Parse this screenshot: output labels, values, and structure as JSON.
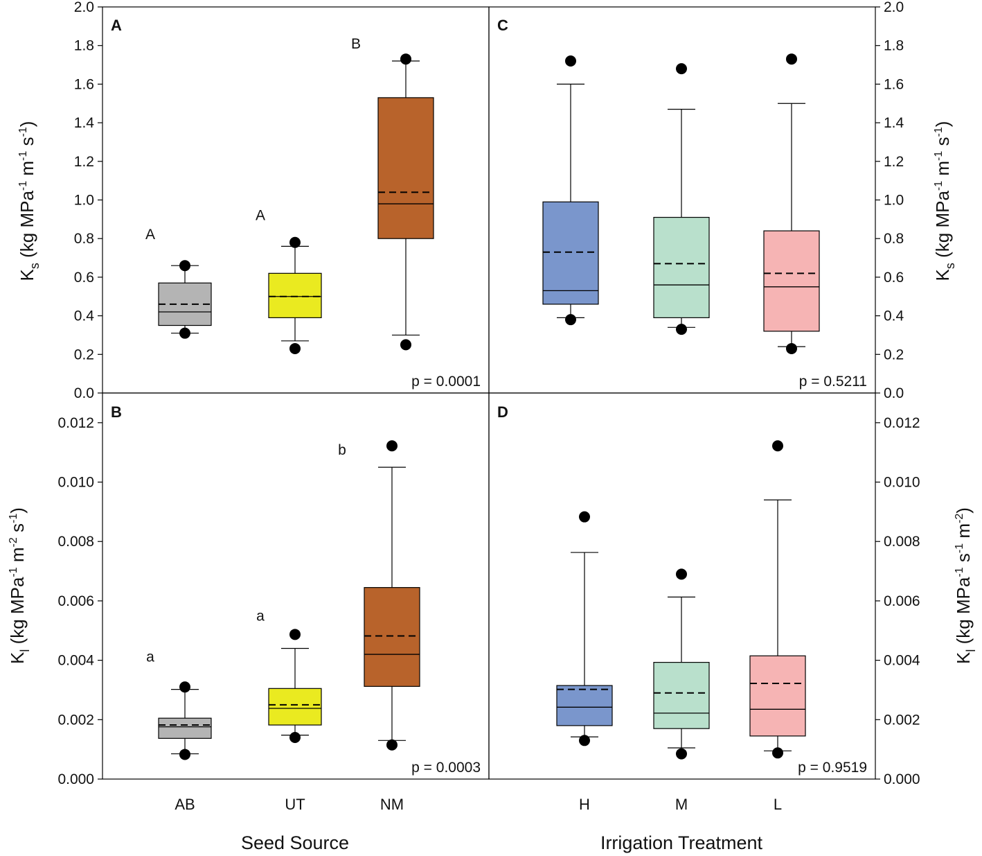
{
  "colors": {
    "AB": "#b4b4b4",
    "UT": "#eaea20",
    "NM": "#b8632b",
    "H": "#7a96cc",
    "M": "#b9e0cc",
    "L": "#f6b4b4",
    "axis": "#000000",
    "outlier": "#000000"
  },
  "axes": {
    "left_xlabel": "Seed Source",
    "right_xlabel": "Irrigation Treatment",
    "top_ylabel": "Ks (kg MPa-1 m-1 s-1)",
    "bottom_left_ylabel": "Kl (kg MPa-1 m-2 s-1)",
    "bottom_right_ylabel": "Kl (kg MPa-1 s-1 m-2)",
    "top_ticks": [
      "0.0",
      "0.2",
      "0.4",
      "0.6",
      "0.8",
      "1.0",
      "1.2",
      "1.4",
      "1.6",
      "1.8",
      "2.0"
    ],
    "bottom_ticks": [
      "0.000",
      "0.002",
      "0.004",
      "0.006",
      "0.008",
      "0.010",
      "0.012"
    ]
  },
  "chart_data": [
    {
      "type": "box",
      "panel": "A",
      "xlabel": "Seed Source",
      "ylabel": "Ks (kg MPa-1 m-1 s-1)",
      "ylim": [
        0,
        2.0
      ],
      "p_value": "p = 0.0001",
      "categories": [
        "AB",
        "UT",
        "NM"
      ],
      "boxes": [
        {
          "name": "AB",
          "whisker_low": 0.31,
          "q1": 0.35,
          "median": 0.42,
          "mean": 0.46,
          "q3": 0.57,
          "whisker_high": 0.66,
          "outliers": [
            0.31,
            0.66
          ],
          "letter": "A"
        },
        {
          "name": "UT",
          "whisker_low": 0.27,
          "q1": 0.39,
          "median": 0.5,
          "mean": 0.5,
          "q3": 0.62,
          "whisker_high": 0.76,
          "outliers": [
            0.23,
            0.78
          ],
          "letter": "A"
        },
        {
          "name": "NM",
          "whisker_low": 0.3,
          "q1": 0.8,
          "median": 0.98,
          "mean": 1.04,
          "q3": 1.53,
          "whisker_high": 1.72,
          "outliers": [
            0.25,
            1.73
          ],
          "letter": "B"
        }
      ]
    },
    {
      "type": "box",
      "panel": "C",
      "xlabel": "Irrigation Treatment",
      "ylabel": "Ks (kg MPa-1 m-1 s-1)",
      "ylim": [
        0,
        2.0
      ],
      "p_value": "p = 0.5211",
      "categories": [
        "H",
        "M",
        "L"
      ],
      "boxes": [
        {
          "name": "H",
          "whisker_low": 0.39,
          "q1": 0.46,
          "median": 0.53,
          "mean": 0.73,
          "q3": 0.99,
          "whisker_high": 1.6,
          "outliers": [
            0.38,
            1.72
          ],
          "letter": ""
        },
        {
          "name": "M",
          "whisker_low": 0.34,
          "q1": 0.39,
          "median": 0.56,
          "mean": 0.67,
          "q3": 0.91,
          "whisker_high": 1.47,
          "outliers": [
            0.33,
            1.68
          ],
          "letter": ""
        },
        {
          "name": "L",
          "whisker_low": 0.24,
          "q1": 0.32,
          "median": 0.55,
          "mean": 0.62,
          "q3": 0.84,
          "whisker_high": 1.5,
          "outliers": [
            0.23,
            1.73
          ],
          "letter": ""
        }
      ]
    },
    {
      "type": "box",
      "panel": "B",
      "xlabel": "Seed Source",
      "ylabel": "Kl (kg MPa-1 m-2 s-1)",
      "ylim": [
        0,
        0.013
      ],
      "p_value": "p = 0.0003",
      "categories": [
        "AB",
        "UT",
        "NM"
      ],
      "boxes": [
        {
          "name": "AB",
          "whisker_low": 0.00085,
          "q1": 0.00137,
          "median": 0.00176,
          "mean": 0.00182,
          "q3": 0.00205,
          "whisker_high": 0.00302,
          "outliers": [
            0.00083,
            0.0031
          ],
          "letter": "a"
        },
        {
          "name": "UT",
          "whisker_low": 0.00148,
          "q1": 0.00182,
          "median": 0.00238,
          "mean": 0.0025,
          "q3": 0.00305,
          "whisker_high": 0.0044,
          "outliers": [
            0.0014,
            0.00487
          ],
          "letter": "a"
        },
        {
          "name": "NM",
          "whisker_low": 0.0013,
          "q1": 0.00312,
          "median": 0.0042,
          "mean": 0.00482,
          "q3": 0.00645,
          "whisker_high": 0.0105,
          "outliers": [
            0.00115,
            0.01122
          ],
          "letter": "b"
        }
      ]
    },
    {
      "type": "box",
      "panel": "D",
      "xlabel": "Irrigation Treatment",
      "ylabel": "Kl (kg MPa-1 s-1 m-2)",
      "ylim": [
        0,
        0.013
      ],
      "p_value": "p = 0.9519",
      "categories": [
        "H",
        "M",
        "L"
      ],
      "boxes": [
        {
          "name": "H",
          "whisker_low": 0.00142,
          "q1": 0.0018,
          "median": 0.00242,
          "mean": 0.00302,
          "q3": 0.00315,
          "whisker_high": 0.00763,
          "outliers": [
            0.0013,
            0.00883
          ],
          "letter": ""
        },
        {
          "name": "M",
          "whisker_low": 0.00105,
          "q1": 0.0017,
          "median": 0.00222,
          "mean": 0.0029,
          "q3": 0.00393,
          "whisker_high": 0.00613,
          "outliers": [
            0.00085,
            0.0069
          ],
          "letter": ""
        },
        {
          "name": "L",
          "whisker_low": 0.00095,
          "q1": 0.00145,
          "median": 0.00235,
          "mean": 0.00322,
          "q3": 0.00415,
          "whisker_high": 0.0094,
          "outliers": [
            0.00088,
            0.01122
          ],
          "letter": ""
        }
      ]
    }
  ]
}
